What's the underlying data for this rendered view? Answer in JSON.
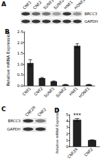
{
  "chart_data": [
    {
      "type": "bar",
      "title": "B",
      "categories": [
        "CNE1",
        "CNE2",
        "SUNE1",
        "SUNE2",
        "HNE1",
        "HONE1"
      ],
      "values": [
        1.05,
        0.35,
        0.2,
        0.05,
        1.85,
        0.05
      ],
      "errors": [
        0.15,
        0.03,
        0.02,
        0.01,
        0.1,
        0.01
      ],
      "y_label": "Relative mRNA Expression",
      "color": "#222222",
      "ylim": [
        0,
        2.5
      ],
      "yticks": [
        {
          "value": 0,
          "label": "0.0"
        },
        {
          "value": 0.5,
          "label": "0.5"
        },
        {
          "value": 1,
          "label": "1.0"
        },
        {
          "value": 1.5,
          "label": "1.5"
        },
        {
          "value": 2,
          "label": "2.0"
        },
        {
          "value": 2.5,
          "label": "2.5"
        }
      ],
      "grid": false
    },
    {
      "type": "bar",
      "title": "D",
      "categories": [
        "CNE2R",
        "CNE2"
      ],
      "values": [
        4.2,
        1.0
      ],
      "errors": [
        0.2,
        0.05
      ],
      "y_label": "Relative mRNA Expression",
      "color": "#222222",
      "ylim": [
        0,
        5
      ],
      "yticks": [
        0,
        1,
        2,
        3,
        4,
        5
      ],
      "annotations": [
        {
          "text": "***",
          "category": "CNE2R"
        }
      ],
      "grid": false
    }
  ],
  "blots": [
    {
      "panel": "A",
      "columns": [
        "CNE1",
        "CNE2",
        "SUNE1",
        "SUNE2",
        "HNE1",
        "HONE1"
      ],
      "rows": [
        {
          "label": "BRCC3",
          "band_intensity": [
            0.85,
            0.6,
            0.55,
            0.35,
            0.85,
            0.4
          ]
        },
        {
          "label": "GAPDH",
          "band_intensity": [
            0.85,
            0.85,
            0.85,
            0.85,
            0.85,
            0.85
          ]
        }
      ]
    },
    {
      "panel": "C",
      "columns": [
        "CNE2R",
        "CNE2"
      ],
      "rows": [
        {
          "label": "BRCC3",
          "band_intensity": [
            0.85,
            0.5
          ]
        },
        {
          "label": "GAPDH",
          "band_intensity": [
            0.85,
            0.85
          ]
        }
      ]
    }
  ]
}
